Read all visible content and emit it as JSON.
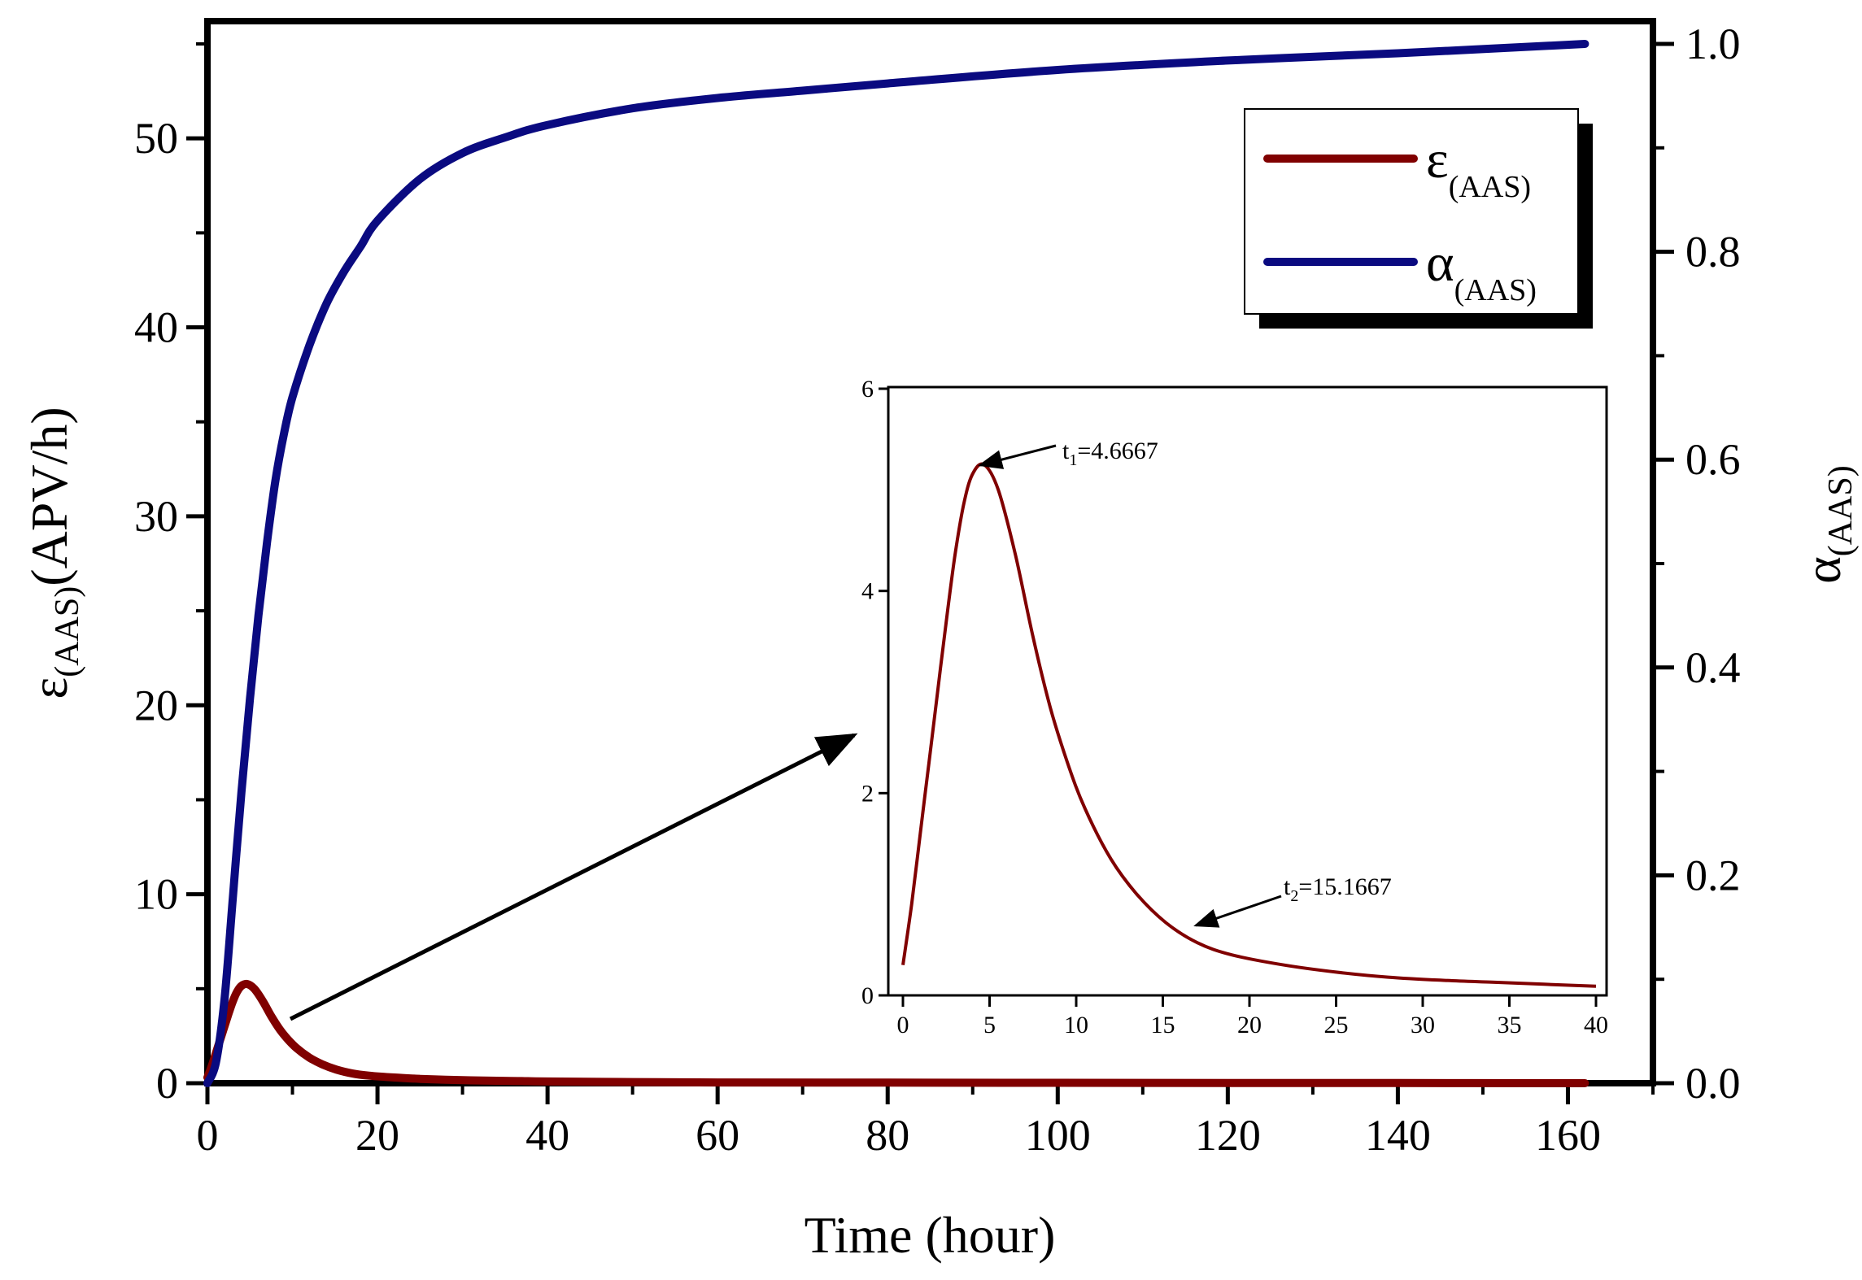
{
  "chart_data": {
    "type": "line",
    "x_label": "Time (hour)",
    "y_left_label_sym": "ε",
    "y_left_label_sub": "(AAS)",
    "y_left_label_unit": "(APV/h)",
    "y_right_label_sym": "α",
    "y_right_label_sub": "(AAS)",
    "x_range": [
      0,
      170
    ],
    "y_left_range": [
      0,
      55
    ],
    "y_right_range": [
      0,
      1.0
    ],
    "x_ticks": [
      "0",
      "20",
      "40",
      "60",
      "80",
      "100",
      "120",
      "140",
      "160"
    ],
    "y_left_ticks": [
      "0",
      "10",
      "20",
      "30",
      "40",
      "50"
    ],
    "y_right_ticks": [
      "0.0",
      "0.2",
      "0.4",
      "0.6",
      "0.8",
      "1.0"
    ],
    "legend": [
      {
        "sym": "ε",
        "sub": "(AAS)",
        "color": "#800000"
      },
      {
        "sym": "α",
        "sub": "(AAS)",
        "color": "#0a0a80"
      }
    ],
    "series": [
      {
        "name": "ε(AAS)",
        "axis": "left",
        "color": "#800000",
        "x": [
          0,
          0.5,
          1,
          1.5,
          2,
          2.5,
          3,
          3.5,
          4,
          4.67,
          5.5,
          6.5,
          7.5,
          8.5,
          9.5,
          10.5,
          12,
          13.5,
          15.17,
          17,
          19,
          22,
          25,
          28,
          31,
          34,
          37,
          40,
          50,
          60,
          80,
          100,
          120,
          140,
          162
        ],
        "y": [
          0.3,
          0.9,
          1.6,
          2.3,
          3.0,
          3.7,
          4.35,
          4.85,
          5.15,
          5.25,
          5.0,
          4.35,
          3.55,
          2.85,
          2.3,
          1.85,
          1.35,
          1.0,
          0.72,
          0.52,
          0.4,
          0.3,
          0.23,
          0.18,
          0.15,
          0.13,
          0.11,
          0.09,
          0.06,
          0.04,
          0.03,
          0.02,
          0.01,
          0.01,
          0.0
        ]
      },
      {
        "name": "α(AAS)",
        "axis": "right",
        "color": "#0a0a80",
        "x": [
          0,
          1,
          2,
          3,
          4,
          5,
          6,
          7,
          8,
          9,
          10,
          12,
          14,
          16,
          18,
          20,
          25,
          30,
          35,
          40,
          50,
          60,
          70,
          80,
          100,
          120,
          140,
          162
        ],
        "y": [
          0.0,
          0.02,
          0.08,
          0.18,
          0.28,
          0.37,
          0.45,
          0.52,
          0.58,
          0.625,
          0.66,
          0.71,
          0.75,
          0.78,
          0.805,
          0.83,
          0.87,
          0.895,
          0.91,
          0.922,
          0.938,
          0.948,
          0.955,
          0.962,
          0.975,
          0.984,
          0.991,
          1.0
        ]
      }
    ],
    "inset": {
      "x_range": [
        0,
        40
      ],
      "y_range": [
        0,
        6
      ],
      "x_ticks": [
        "0",
        "5",
        "10",
        "15",
        "20",
        "25",
        "30",
        "35",
        "40"
      ],
      "y_ticks": [
        "0",
        "2",
        "4",
        "6"
      ],
      "annotations": [
        {
          "sym": "t",
          "sub": "1",
          "value": "=4.6667",
          "x": 4.6667,
          "y": 5.25
        },
        {
          "sym": "t",
          "sub": "2",
          "value": "=15.1667",
          "x": 17.0,
          "y": 0.55
        }
      ],
      "series": {
        "name": "ε(AAS)",
        "color": "#800000",
        "x": [
          0,
          0.5,
          1,
          1.5,
          2,
          2.5,
          3,
          3.5,
          4,
          4.67,
          5.5,
          6.5,
          7.5,
          8.5,
          9.5,
          10.5,
          12,
          13.5,
          15.17,
          17,
          19,
          22,
          25,
          28,
          31,
          34,
          37,
          40
        ],
        "y": [
          0.3,
          0.9,
          1.6,
          2.3,
          3.0,
          3.7,
          4.35,
          4.85,
          5.15,
          5.25,
          5.0,
          4.35,
          3.55,
          2.85,
          2.3,
          1.85,
          1.35,
          1.0,
          0.72,
          0.52,
          0.4,
          0.3,
          0.23,
          0.18,
          0.15,
          0.13,
          0.11,
          0.09
        ]
      }
    }
  }
}
